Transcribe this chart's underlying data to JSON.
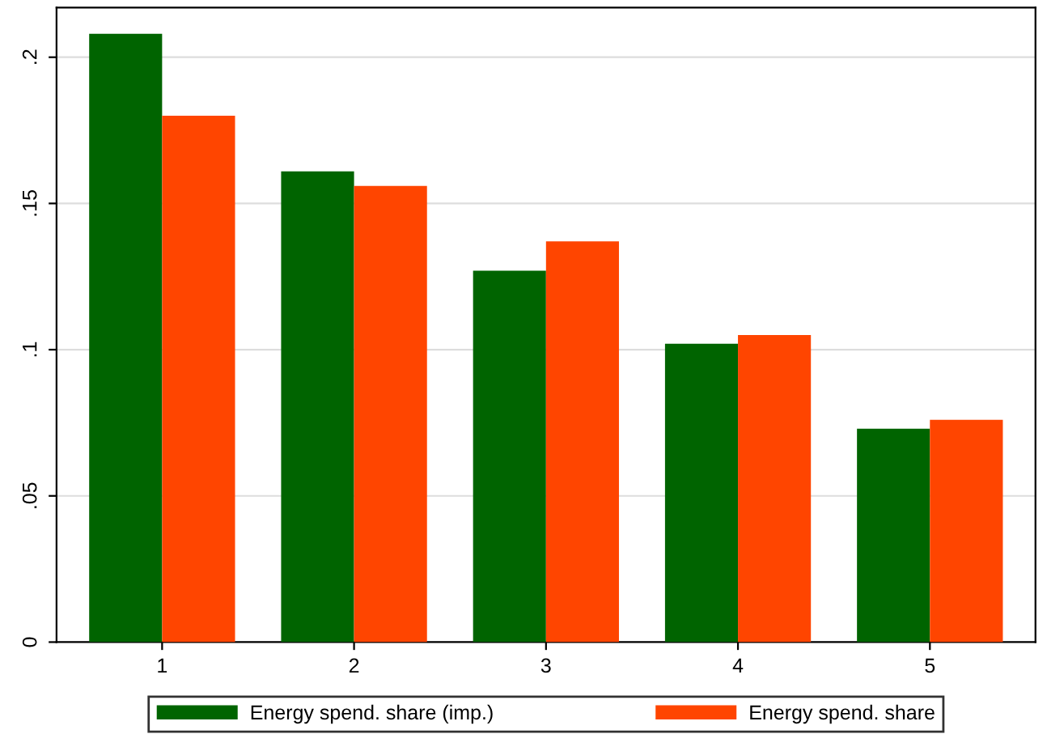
{
  "chart_data": {
    "type": "bar",
    "categories": [
      "1",
      "2",
      "3",
      "4",
      "5"
    ],
    "series": [
      {
        "name": "Energy spend. share (imp.)",
        "color": "#006400",
        "values": [
          0.208,
          0.161,
          0.127,
          0.102,
          0.073
        ]
      },
      {
        "name": "Energy spend. share",
        "color": "#ff4500",
        "values": [
          0.18,
          0.156,
          0.137,
          0.105,
          0.076
        ]
      }
    ],
    "ylim": [
      0,
      0.217
    ],
    "yticks": [
      {
        "value": 0,
        "label": "0"
      },
      {
        "value": 0.05,
        "label": ".05"
      },
      {
        "value": 0.1,
        "label": ".1"
      },
      {
        "value": 0.15,
        "label": ".15"
      },
      {
        "value": 0.2,
        "label": ".2"
      }
    ],
    "grid": "y",
    "legend": "bottom"
  }
}
